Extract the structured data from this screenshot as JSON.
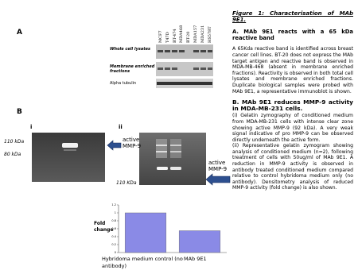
{
  "panel_a": {
    "label": "A",
    "lanes": [
      "MCF7",
      "T47D",
      "BT-474",
      "MDA468",
      "BT-20",
      "MDA157",
      "MDA231",
      "HS578T"
    ],
    "blots": [
      "Whole cell lysates",
      "Membrane enriched fractions",
      "Alpha tubulin"
    ]
  },
  "panel_b": {
    "label": "B",
    "sub_i": "i",
    "sub_ii": "ii",
    "markers_i": [
      "110 kDa",
      "80 kDa"
    ],
    "marker_ii": "110 KDa",
    "arrow_label": "active MMP-9",
    "chart": {
      "type": "bar",
      "y_label": "Fold change",
      "categories": [
        "Hybridoma medium control (no antibody)",
        "MAb 9E1"
      ],
      "values": [
        1,
        0.55
      ],
      "color": "#8a8ae6",
      "ylim": [
        0,
        1.2
      ],
      "yticks": [
        0,
        0.2,
        0.4,
        0.6,
        0.8,
        1,
        1.2
      ]
    }
  },
  "legend": {
    "title": "Figure 1: Characterisation of MAb 9E1.",
    "a_heading": "A. MAb 9E1 reacts with a 65 kDa reactive band",
    "a_text": "A 65Kda reactive band is identified across breast cancer cell lines. BT-20 does not express the MAb target antigen and reactive band is observed in MDA-MB-468 (absent in membrane enriched fractions). Reactivity is observed in both total cell lysates and membrane enriched fractions. Duplicate biological samples were probed with MAb 9E1, a representative immunoblot is shown.",
    "b_heading": "B. MAb 9E1 reduces MMP-9 activity in MDA-MB-231 cells.",
    "b_i": "(i) Gelatin zymography of conditioned medium from MDA-MB-231 cells with intense clear zone showing active MMP-9 (92 kDa). A very weak signal indicative of pro MMP-9 can be observed directly underneath the active form.",
    "b_ii": "(ii) Representative gelatin zymogram showing analysis of conditioned medium (n=2), following treatment of cells with 50ug/ml of MAb 9E1. A reduction in MMP-9 activity is observed in antibody treated conditioned medium compared relative to control hybridoma medium only (no antibody). Densitometry analysis of reduced MMP-9 activity (fold change) is also shown."
  }
}
